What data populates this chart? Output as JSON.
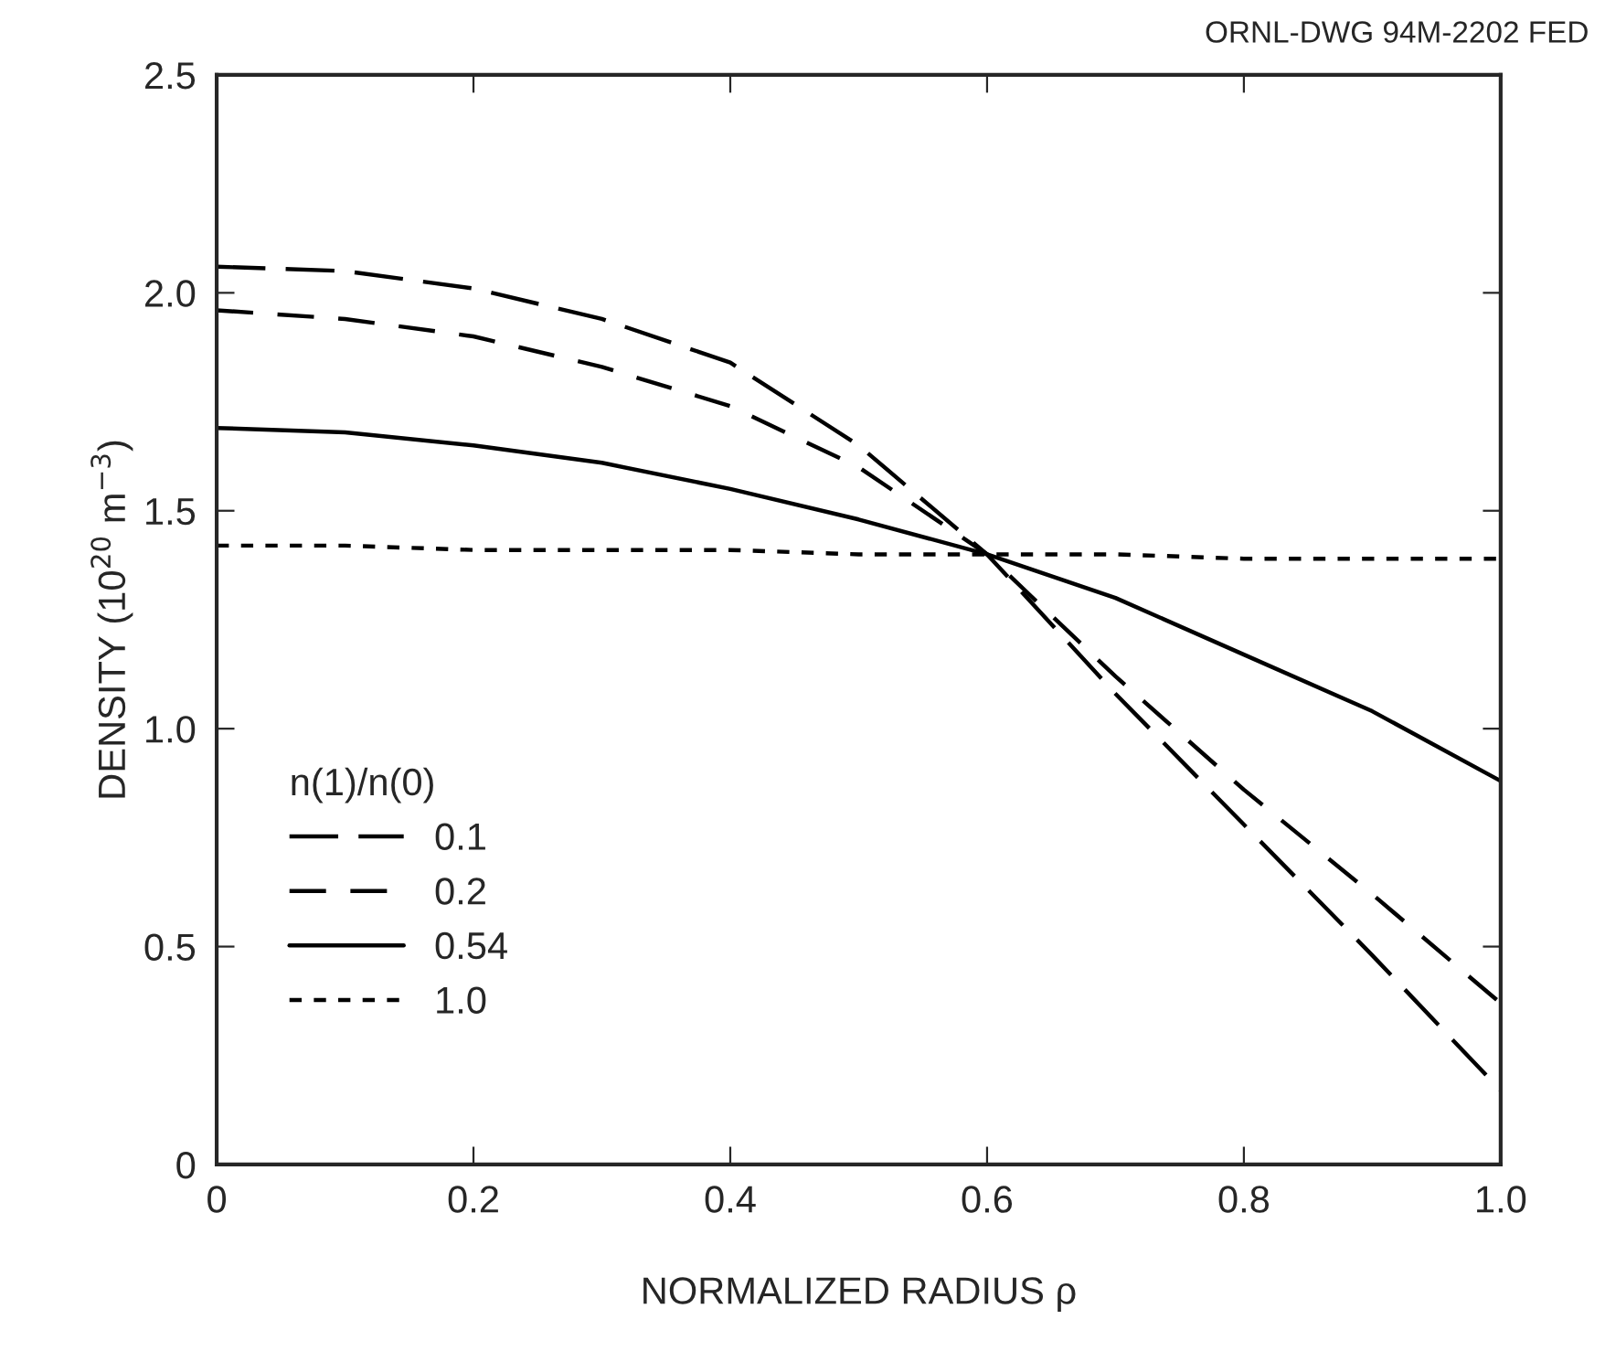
{
  "chart_data": {
    "type": "line",
    "xlabel": "NORMALIZED RADIUS ρ",
    "ylabel": "DENSITY (10$^{20}$ m$^{−3}$)",
    "legend_title": "n(1)/n(0)",
    "legend": "lower left",
    "annotations": [
      "ORNL-DWG 94M-2202 FED"
    ],
    "x": [
      0,
      0.1,
      0.2,
      0.3,
      0.4,
      0.5,
      0.6,
      0.7,
      0.8,
      0.9,
      1.0
    ],
    "xlim": [
      0,
      1.0
    ],
    "xticks": [
      0,
      0.2,
      0.4,
      0.6,
      0.8,
      {
        "value": 1,
        "label": "1.0"
      }
    ],
    "ylim": [
      0,
      2.5
    ],
    "yticks": [
      0,
      0.5,
      {
        "value": 1,
        "label": "1.0"
      },
      1.5,
      {
        "value": 2,
        "label": "2.0"
      },
      2.5
    ],
    "grid": false,
    "marker": "none",
    "series": [
      {
        "name": "0.1",
        "color": "#000000",
        "line_style": "dashed",
        "values": [
          2.06,
          2.05,
          2.01,
          1.94,
          1.84,
          1.65,
          1.4,
          1.08,
          0.78,
          0.48,
          0.17
        ]
      },
      {
        "name": "0.2",
        "color": "#000000",
        "line_style": "dashed",
        "values": [
          1.96,
          1.94,
          1.9,
          1.83,
          1.74,
          1.6,
          1.4,
          1.12,
          0.86,
          0.62,
          0.37
        ]
      },
      {
        "name": "0.54",
        "color": "#000000",
        "line_style": "solid",
        "values": [
          1.69,
          1.68,
          1.65,
          1.61,
          1.55,
          1.48,
          1.4,
          1.3,
          1.17,
          1.04,
          0.88
        ]
      },
      {
        "name": "1.0",
        "color": "#000000",
        "line_style": "dotted",
        "values": [
          1.42,
          1.42,
          1.41,
          1.41,
          1.41,
          1.4,
          1.4,
          1.4,
          1.39,
          1.39,
          1.39
        ]
      }
    ]
  }
}
